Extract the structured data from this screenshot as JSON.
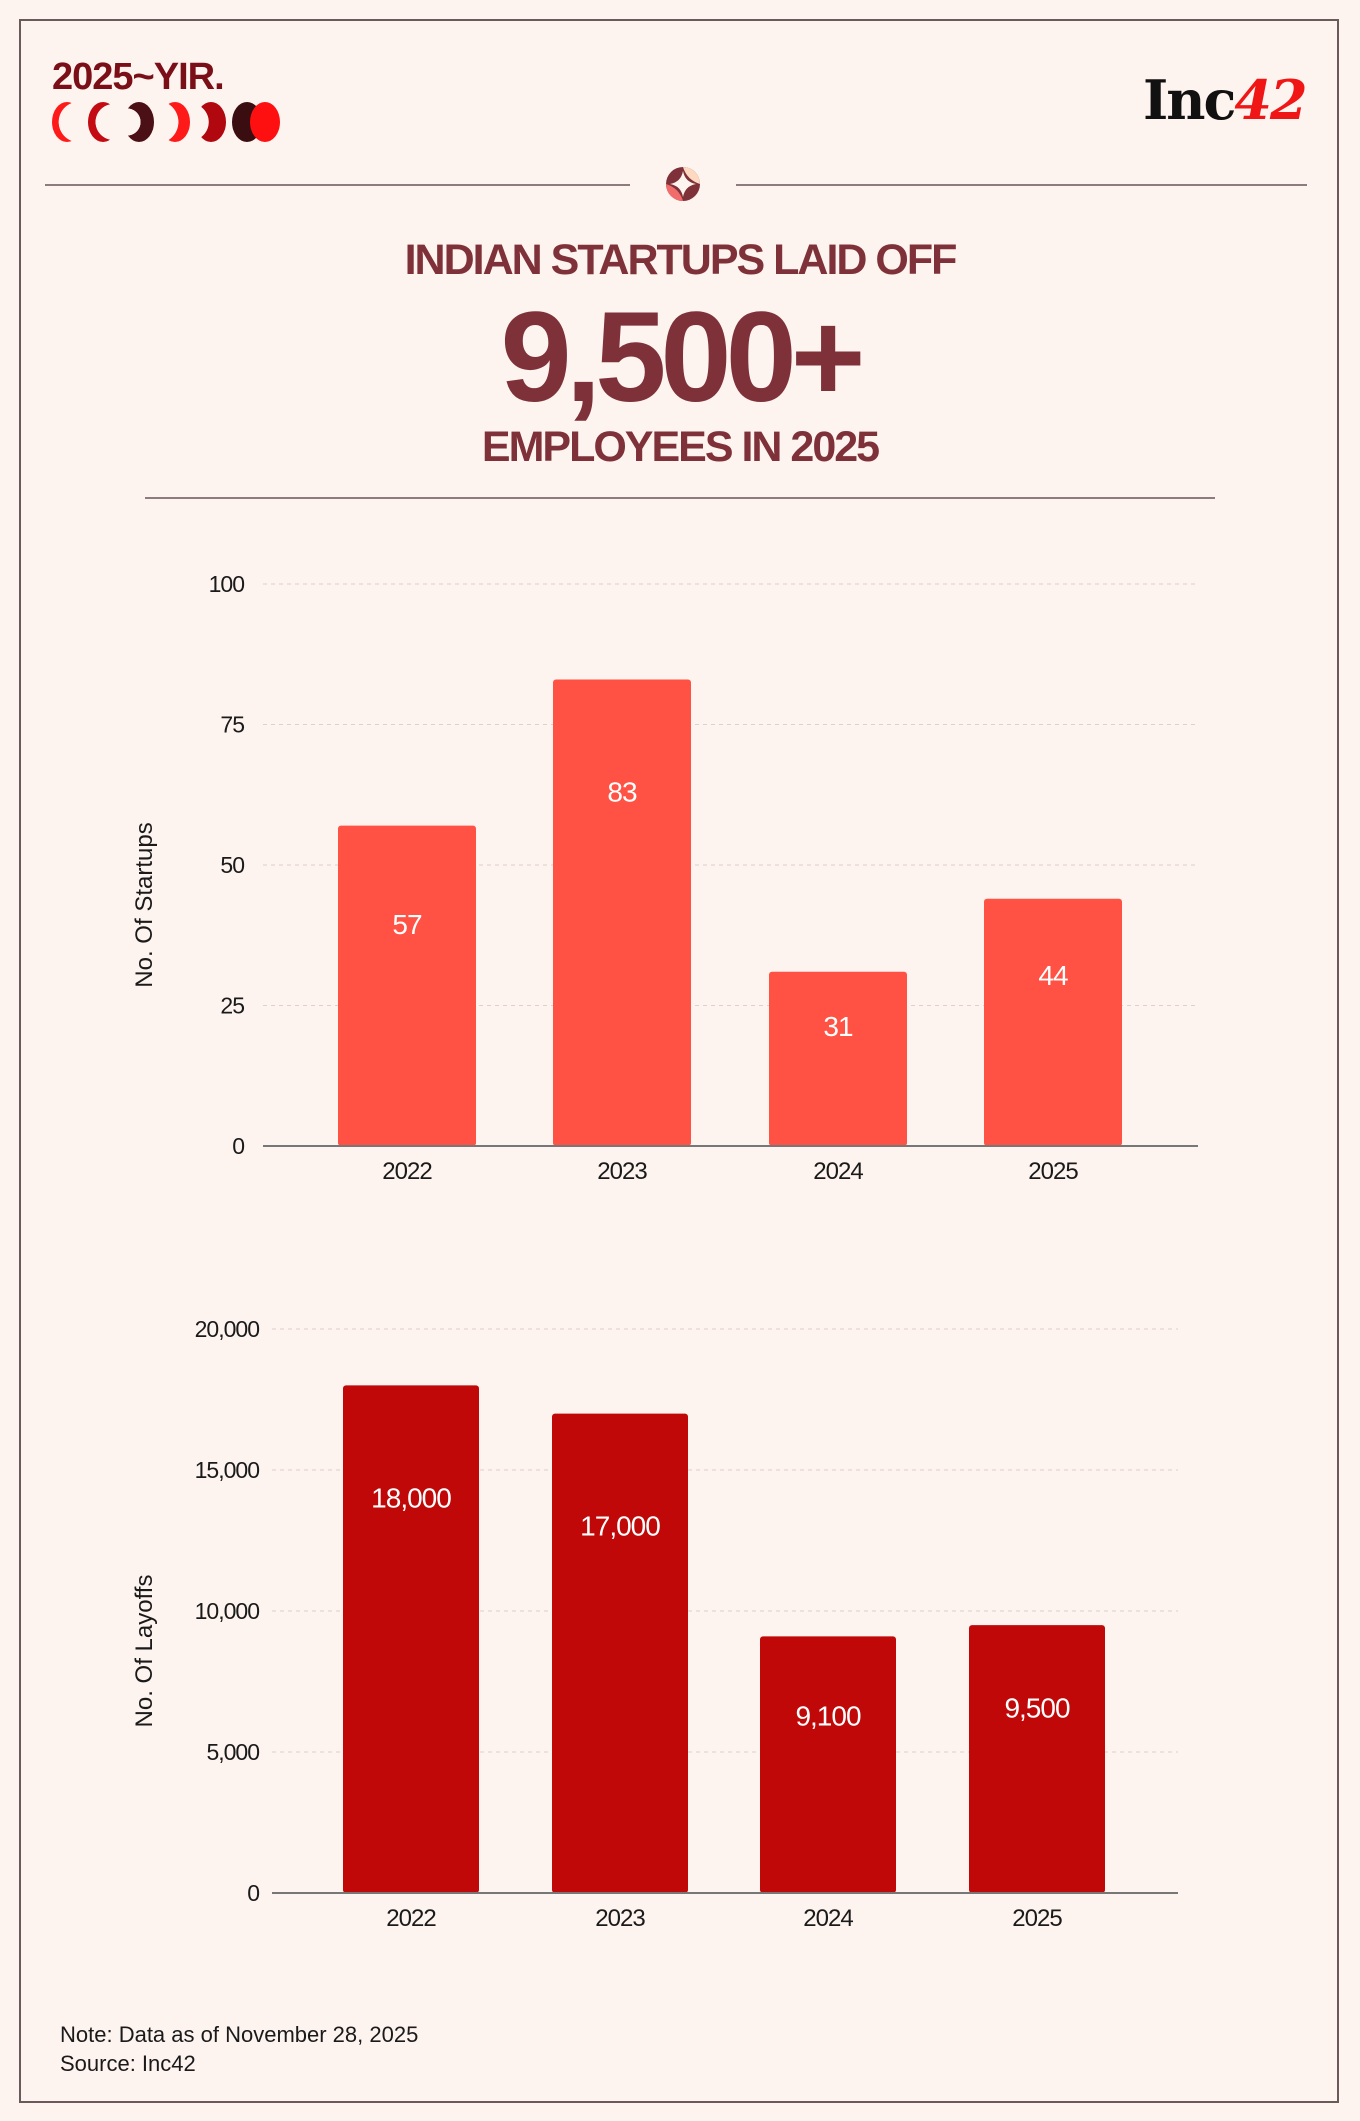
{
  "brand": {
    "yir_logo": "2025~YIR.",
    "publisher_logo": "Inc42"
  },
  "headline": {
    "line1": "INDIAN STARTUPS LAID OFF",
    "figure": "9,500+",
    "line2": "EMPLOYEES IN 2025"
  },
  "colors": {
    "background": "#fdf3ef",
    "headline": "#7f3139",
    "startups_bar": "#ff5245",
    "layoffs_bar": "#c00808"
  },
  "chart_data": [
    {
      "type": "bar",
      "categories": [
        "2022",
        "2023",
        "2024",
        "2025"
      ],
      "values": [
        57,
        83,
        31,
        44
      ],
      "data_labels": [
        "57",
        "83",
        "31",
        "44"
      ],
      "ylabel": "No. Of Startups",
      "ylim": [
        0,
        100
      ],
      "yticks": [
        0,
        25,
        50,
        75,
        100
      ],
      "ytick_labels": [
        "0",
        "25",
        "50",
        "75",
        "100"
      ],
      "grid": true,
      "color": "#ff5245"
    },
    {
      "type": "bar",
      "categories": [
        "2022",
        "2023",
        "2024",
        "2025"
      ],
      "values": [
        18000,
        17000,
        9100,
        9500
      ],
      "data_labels": [
        "18,000",
        "17,000",
        "9,100",
        "9,500"
      ],
      "ylabel": "No. Of Layoffs",
      "ylim": [
        0,
        20000
      ],
      "yticks": [
        0,
        5000,
        10000,
        15000,
        20000
      ],
      "ytick_labels": [
        "0",
        "5,000",
        "10,000",
        "15,000",
        "20,000"
      ],
      "grid": true,
      "color": "#c00808"
    }
  ],
  "footer": {
    "note": "Note: Data as of November 28, 2025",
    "source": "Source: Inc42"
  }
}
